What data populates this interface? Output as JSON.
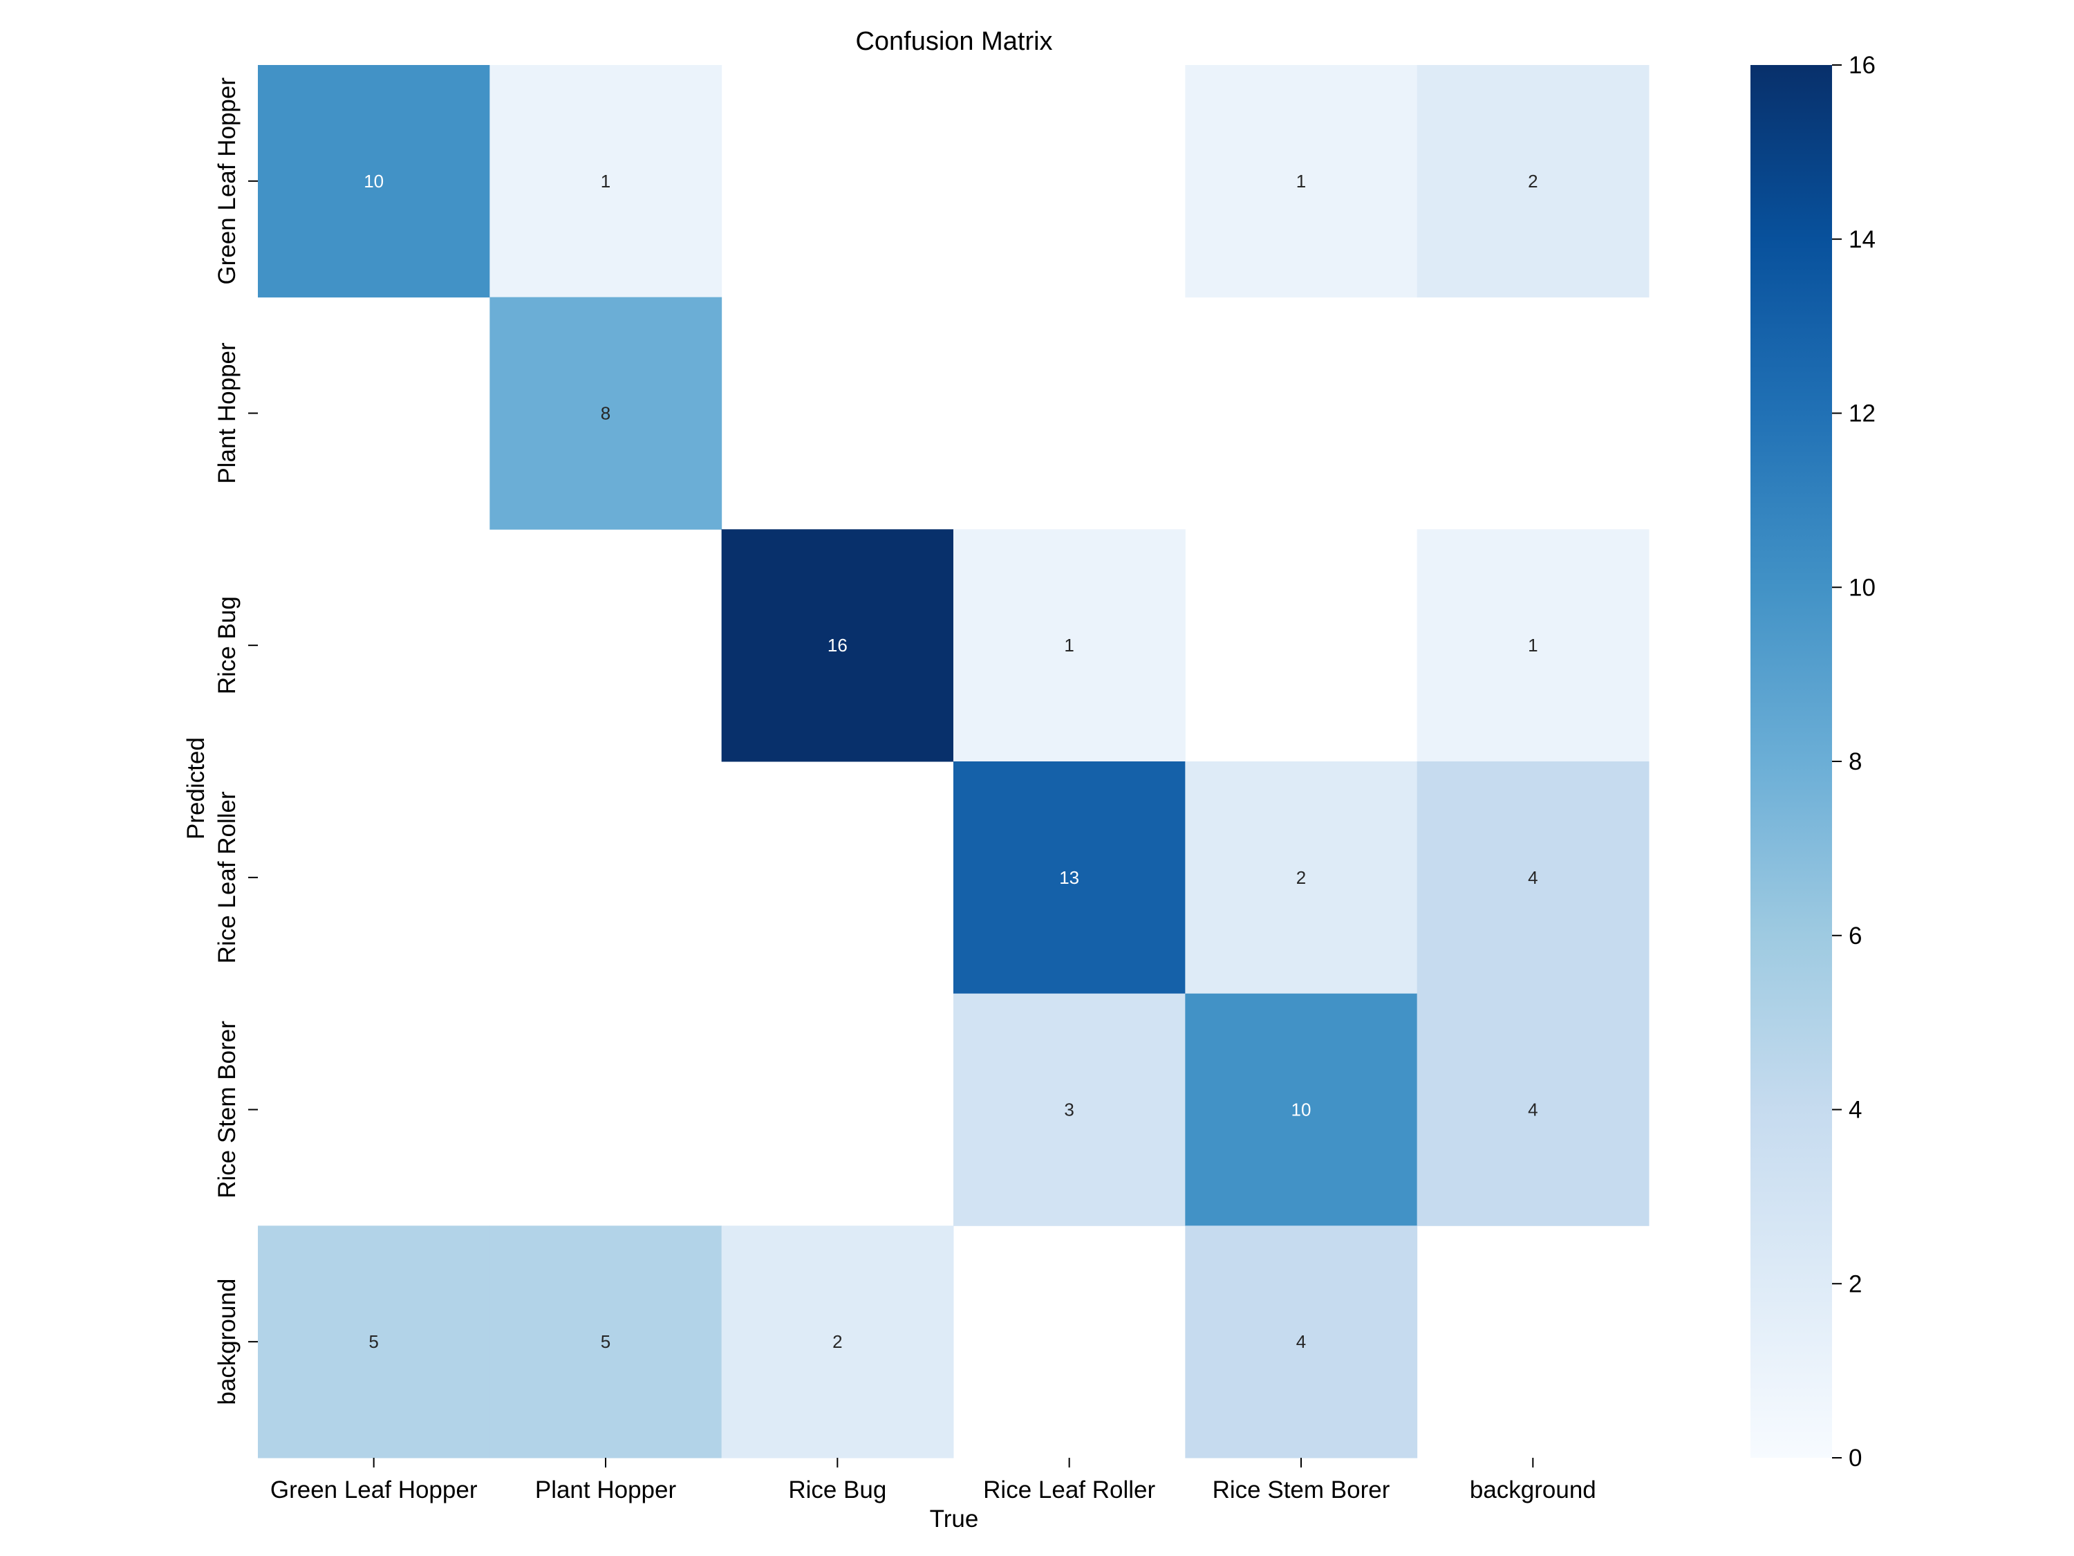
{
  "chart_data": {
    "type": "heatmap",
    "title": "Confusion Matrix",
    "xlabel": "True",
    "ylabel": "Predicted",
    "x_categories": [
      "Green Leaf Hopper",
      "Plant Hopper",
      "Rice Bug",
      "Rice Leaf Roller",
      "Rice Stem Borer",
      "background"
    ],
    "y_categories": [
      "Green Leaf Hopper",
      "Plant Hopper",
      "Rice Bug",
      "Rice Leaf Roller",
      "Rice Stem Borer",
      "background"
    ],
    "values": [
      [
        10,
        1,
        null,
        null,
        1,
        2
      ],
      [
        null,
        8,
        null,
        null,
        null,
        null
      ],
      [
        null,
        null,
        16,
        1,
        null,
        1
      ],
      [
        null,
        null,
        null,
        13,
        2,
        4
      ],
      [
        null,
        null,
        null,
        3,
        10,
        4
      ],
      [
        5,
        5,
        2,
        null,
        4,
        null
      ]
    ],
    "colorbar": {
      "range": [
        0,
        16
      ],
      "ticks": [
        0,
        2,
        4,
        6,
        8,
        10,
        12,
        14,
        16
      ]
    },
    "colormap": "Blues",
    "colors": {
      "low": "#f7fbff",
      "high": "#08306b"
    }
  }
}
